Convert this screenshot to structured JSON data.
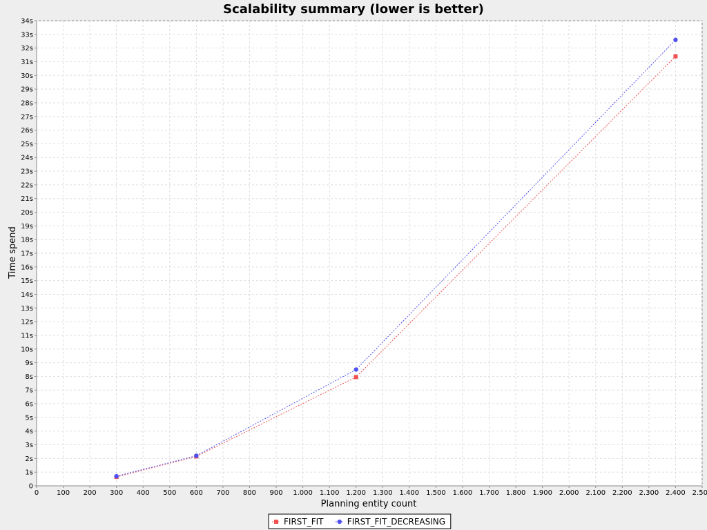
{
  "chart_data": {
    "type": "line",
    "title": "Scalability summary (lower is better)",
    "xlabel": "Planning entity count",
    "ylabel": "Time spend",
    "xlim": [
      0,
      2500
    ],
    "ylim": [
      0,
      34
    ],
    "x_ticks": [
      0,
      100,
      200,
      300,
      400,
      500,
      600,
      700,
      800,
      900,
      1000,
      1100,
      1200,
      1300,
      1400,
      1500,
      1600,
      1700,
      1800,
      1900,
      2000,
      2100,
      2200,
      2300,
      2400,
      2500
    ],
    "x_tick_labels": [
      "0",
      "100",
      "200",
      "300",
      "400",
      "500",
      "600",
      "700",
      "800",
      "900",
      "1.000",
      "1.100",
      "1.200",
      "1.300",
      "1.400",
      "1.500",
      "1.600",
      "1.700",
      "1.800",
      "1.900",
      "2.000",
      "2.100",
      "2.200",
      "2.300",
      "2.400",
      "2.500"
    ],
    "y_ticks": [
      0,
      1,
      2,
      3,
      4,
      5,
      6,
      7,
      8,
      9,
      10,
      11,
      12,
      13,
      14,
      15,
      16,
      17,
      18,
      19,
      20,
      21,
      22,
      23,
      24,
      25,
      26,
      27,
      28,
      29,
      30,
      31,
      32,
      33,
      34
    ],
    "y_tick_labels": [
      "0",
      "1s",
      "2s",
      "3s",
      "4s",
      "5s",
      "6s",
      "7s",
      "8s",
      "9s",
      "10s",
      "11s",
      "12s",
      "13s",
      "14s",
      "15s",
      "16s",
      "17s",
      "18s",
      "19s",
      "20s",
      "21s",
      "22s",
      "23s",
      "24s",
      "25s",
      "26s",
      "27s",
      "28s",
      "29s",
      "30s",
      "31s",
      "32s",
      "33s",
      "34s"
    ],
    "grid": true,
    "legend_position": "bottom",
    "series": [
      {
        "name": "FIRST_FIT",
        "color": "#f05050",
        "marker": "square",
        "x": [
          300,
          600,
          1200,
          2400
        ],
        "y": [
          0.65,
          2.15,
          7.95,
          31.4
        ]
      },
      {
        "name": "FIRST_FIT_DECREASING",
        "color": "#5050f0",
        "marker": "circle",
        "x": [
          300,
          600,
          1200,
          2400
        ],
        "y": [
          0.7,
          2.2,
          8.5,
          32.6
        ]
      }
    ]
  }
}
